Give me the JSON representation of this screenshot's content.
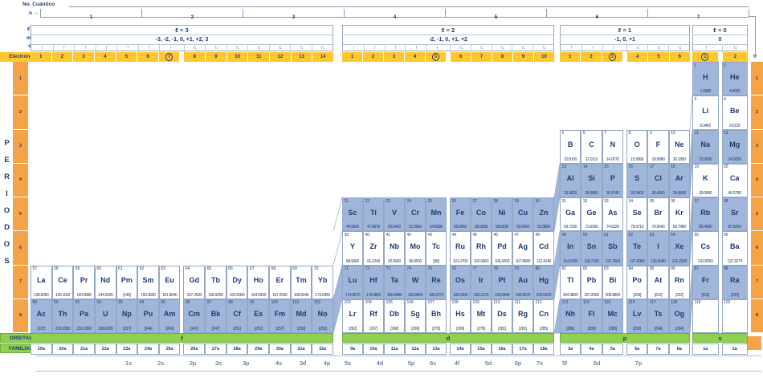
{
  "labels": {
    "no_cuantico": "No. Cuántico",
    "n": "n",
    "l": "ℓ",
    "m": "m",
    "s": "s",
    "arrow": "→",
    "electrones": "Electrones",
    "periodos": "PERIODOS",
    "orbital": "ORBITAL",
    "familias": "FAMILIAS"
  },
  "colors": {
    "navy_text": "#1f3a70",
    "cell_blue": "#a0b5da",
    "electron_yellow": "#ffc62e",
    "period_orange": "#f4a446",
    "orbital_green": "#8fd14f"
  },
  "n_axis": [
    "1",
    "2",
    "3",
    "4",
    "5",
    "6",
    "7"
  ],
  "periods_left": [
    "1",
    "2",
    "3",
    "4",
    "5",
    "6",
    "7",
    "8"
  ],
  "periods_right": [
    "1",
    "2",
    "3",
    "4",
    "5",
    "6",
    "7",
    "8"
  ],
  "bottom_axis": [
    "1s",
    "2s",
    "2p",
    "3s",
    "3p",
    "4s",
    "3d",
    "4p",
    "5s",
    "4d",
    "5p",
    "6s",
    "4f",
    "5d",
    "6p",
    "7s",
    "5f",
    "6d",
    "7p"
  ],
  "blocks": [
    {
      "id": "f",
      "l_label": "ℓ = 3",
      "m_label": "-3, -2, -1, 0, +1, +2, 3",
      "spins": [
        "↑",
        "↑",
        "↑",
        "↑",
        "↑",
        "↑",
        "↑",
        "↑↓",
        "↑↓",
        "↑↓",
        "↑↓",
        "↑↓",
        "↑↓",
        "↑↓"
      ],
      "electrones": [
        "1",
        "2",
        "3",
        "4",
        "5",
        "6",
        "7",
        "8",
        "9",
        "10",
        "11",
        "12",
        "13",
        "14"
      ],
      "circled": "7",
      "orbital": "f",
      "familias": [
        "19a",
        "20a",
        "21a",
        "22a",
        "23a",
        "24a",
        "25a",
        "26a",
        "27a",
        "28a",
        "29a",
        "30a",
        "31a",
        "32a"
      ],
      "rows": [
        {
          "period": 7,
          "tone": "white",
          "cells": [
            {
              "z": "57",
              "sym": "La",
              "mass": "138.9050"
            },
            {
              "z": "58",
              "sym": "Ce",
              "mass": "140.1160"
            },
            {
              "z": "59",
              "sym": "Pr",
              "mass": "140.9080"
            },
            {
              "z": "60",
              "sym": "Nd",
              "mass": "144.2420"
            },
            {
              "z": "61",
              "sym": "Pm",
              "mass": "[145]"
            },
            {
              "z": "62",
              "sym": "Sm",
              "mass": "150.3600"
            },
            {
              "z": "63",
              "sym": "Eu",
              "mass": "151.9640"
            },
            {
              "z": "64",
              "sym": "Gd",
              "mass": "157.2500"
            },
            {
              "z": "65",
              "sym": "Tb",
              "mass": "158.9250"
            },
            {
              "z": "66",
              "sym": "Dy",
              "mass": "162.5000"
            },
            {
              "z": "67",
              "sym": "Ho",
              "mass": "164.9300"
            },
            {
              "z": "68",
              "sym": "Er",
              "mass": "167.2590"
            },
            {
              "z": "69",
              "sym": "Tm",
              "mass": "168.9340"
            },
            {
              "z": "70",
              "sym": "Yb",
              "mass": "173.0450"
            }
          ]
        },
        {
          "period": 8,
          "tone": "blue",
          "cells": [
            {
              "z": "89",
              "sym": "Ac",
              "mass": "[227]"
            },
            {
              "z": "90",
              "sym": "Th",
              "mass": "232.0380"
            },
            {
              "z": "91",
              "sym": "Pa",
              "mass": "231.0360"
            },
            {
              "z": "92",
              "sym": "U",
              "mass": "238.0290"
            },
            {
              "z": "93",
              "sym": "Np",
              "mass": "[237]"
            },
            {
              "z": "94",
              "sym": "Pu",
              "mass": "[244]"
            },
            {
              "z": "95",
              "sym": "Am",
              "mass": "[243]"
            },
            {
              "z": "96",
              "sym": "Cm",
              "mass": "[247]"
            },
            {
              "z": "97",
              "sym": "Bk",
              "mass": "[247]"
            },
            {
              "z": "98",
              "sym": "Cf",
              "mass": "[251]"
            },
            {
              "z": "99",
              "sym": "Es",
              "mass": "[252]"
            },
            {
              "z": "100",
              "sym": "Fm",
              "mass": "[257]"
            },
            {
              "z": "101",
              "sym": "Md",
              "mass": "[258]"
            },
            {
              "z": "102",
              "sym": "No",
              "mass": "[259]"
            }
          ]
        }
      ]
    },
    {
      "id": "d",
      "l_label": "ℓ = 2",
      "m_label": "-2, -1, 0, +1, +2",
      "spins": [
        "↑",
        "↑",
        "↑",
        "↑",
        "↑",
        "↑↓",
        "↑↓",
        "↑↓",
        "↑↓",
        "↑↓"
      ],
      "electrones": [
        "1",
        "2",
        "3",
        "4",
        "5",
        "6",
        "7",
        "8",
        "9",
        "10"
      ],
      "circled": "5",
      "orbital": "d",
      "familias": [
        "9a",
        "10a",
        "11a",
        "12a",
        "13a",
        "14a",
        "15a",
        "16a",
        "17a",
        "18a"
      ],
      "rows": [
        {
          "period": 5,
          "tone": "blue",
          "cells": [
            {
              "z": "21",
              "sym": "Sc",
              "mass": "44.9560"
            },
            {
              "z": "22",
              "sym": "Ti",
              "mass": "47.8670"
            },
            {
              "z": "23",
              "sym": "V",
              "mass": "50.9420"
            },
            {
              "z": "24",
              "sym": "Cr",
              "mass": "51.9960"
            },
            {
              "z": "25",
              "sym": "Mn",
              "mass": "54.9380"
            },
            {
              "z": "26",
              "sym": "Fe",
              "mass": "55.8450"
            },
            {
              "z": "27",
              "sym": "Co",
              "mass": "58.9330"
            },
            {
              "z": "28",
              "sym": "Ni",
              "mass": "58.6930"
            },
            {
              "z": "29",
              "sym": "Cu",
              "mass": "63.5460"
            },
            {
              "z": "30",
              "sym": "Zn",
              "mass": "65.3800"
            }
          ]
        },
        {
          "period": 6,
          "tone": "white",
          "cells": [
            {
              "z": "39",
              "sym": "Y",
              "mass": "88.9060"
            },
            {
              "z": "40",
              "sym": "Zr",
              "mass": "91.2240"
            },
            {
              "z": "41",
              "sym": "Nb",
              "mass": "92.9060"
            },
            {
              "z": "42",
              "sym": "Mo",
              "mass": "95.9500"
            },
            {
              "z": "43",
              "sym": "Tc",
              "mass": "[98]"
            },
            {
              "z": "44",
              "sym": "Ru",
              "mass": "101.0700"
            },
            {
              "z": "45",
              "sym": "Rh",
              "mass": "102.9060"
            },
            {
              "z": "46",
              "sym": "Pd",
              "mass": "106.4200"
            },
            {
              "z": "47",
              "sym": "Ag",
              "mass": "107.8680"
            },
            {
              "z": "48",
              "sym": "Cd",
              "mass": "112.4140"
            }
          ]
        },
        {
          "period": 7,
          "tone": "blue",
          "cells": [
            {
              "z": "71",
              "sym": "Lu",
              "mass": "174.9670"
            },
            {
              "z": "72",
              "sym": "Hf",
              "mass": "178.4860"
            },
            {
              "z": "73",
              "sym": "Ta",
              "mass": "180.9480"
            },
            {
              "z": "74",
              "sym": "W",
              "mass": "183.8400"
            },
            {
              "z": "75",
              "sym": "Re",
              "mass": "186.2070"
            },
            {
              "z": "76",
              "sym": "Os",
              "mass": "190.2300"
            },
            {
              "z": "77",
              "sym": "Ir",
              "mass": "192.2170"
            },
            {
              "z": "78",
              "sym": "Pt",
              "mass": "195.0840"
            },
            {
              "z": "79",
              "sym": "Au",
              "mass": "196.9670"
            },
            {
              "z": "80",
              "sym": "Hg",
              "mass": "200.5920"
            }
          ]
        },
        {
          "period": 8,
          "tone": "white",
          "cells": [
            {
              "z": "103",
              "sym": "Lr",
              "mass": "[262]"
            },
            {
              "z": "104",
              "sym": "Rf",
              "mass": "[267]"
            },
            {
              "z": "105",
              "sym": "Db",
              "mass": "[268]"
            },
            {
              "z": "106",
              "sym": "Sg",
              "mass": "[269]"
            },
            {
              "z": "107",
              "sym": "Bh",
              "mass": "[270]"
            },
            {
              "z": "108",
              "sym": "Hs",
              "mass": "[269]"
            },
            {
              "z": "109",
              "sym": "Mt",
              "mass": "[278]"
            },
            {
              "z": "110",
              "sym": "Ds",
              "mass": "[281]"
            },
            {
              "z": "111",
              "sym": "Rg",
              "mass": "[281]"
            },
            {
              "z": "112",
              "sym": "Cn",
              "mass": "[285]"
            }
          ]
        }
      ]
    },
    {
      "id": "p",
      "l_label": "ℓ = 1",
      "m_label": "-1, 0, +1",
      "spins": [
        "↑",
        "↑",
        "↑",
        "↑↓",
        "↑↓",
        "↑↓"
      ],
      "electrones": [
        "1",
        "2",
        "3",
        "4",
        "5",
        "6"
      ],
      "circled": "3",
      "orbital": "p",
      "familias": [
        "3a",
        "4a",
        "5a",
        "6a",
        "7a",
        "8a"
      ],
      "rows": [
        {
          "period": 3,
          "tone": "white",
          "cells": [
            {
              "z": "5",
              "sym": "B",
              "mass": "10.8100"
            },
            {
              "z": "6",
              "sym": "C",
              "mass": "12.0110"
            },
            {
              "z": "7",
              "sym": "N",
              "mass": "14.0070"
            },
            {
              "z": "8",
              "sym": "O",
              "mass": "15.9990"
            },
            {
              "z": "9",
              "sym": "F",
              "mass": "18.9980"
            },
            {
              "z": "10",
              "sym": "Ne",
              "mass": "20.1800"
            }
          ]
        },
        {
          "period": 4,
          "tone": "blue",
          "cells": [
            {
              "z": "13",
              "sym": "Al",
              "mass": "26.9820"
            },
            {
              "z": "14",
              "sym": "Si",
              "mass": "28.0850"
            },
            {
              "z": "15",
              "sym": "P",
              "mass": "30.9740"
            },
            {
              "z": "16",
              "sym": "S",
              "mass": "32.0600"
            },
            {
              "z": "17",
              "sym": "Cl",
              "mass": "35.4500"
            },
            {
              "z": "18",
              "sym": "Ar",
              "mass": "39.9500"
            }
          ]
        },
        {
          "period": 5,
          "tone": "white",
          "cells": [
            {
              "z": "31",
              "sym": "Ga",
              "mass": "69.7230"
            },
            {
              "z": "32",
              "sym": "Ge",
              "mass": "72.6300"
            },
            {
              "z": "33",
              "sym": "As",
              "mass": "74.9220"
            },
            {
              "z": "34",
              "sym": "Se",
              "mass": "78.9710"
            },
            {
              "z": "35",
              "sym": "Br",
              "mass": "79.9040"
            },
            {
              "z": "36",
              "sym": "Kr",
              "mass": "83.7980"
            }
          ]
        },
        {
          "period": 6,
          "tone": "blue",
          "cells": [
            {
              "z": "49",
              "sym": "In",
              "mass": "114.8180"
            },
            {
              "z": "50",
              "sym": "Sn",
              "mass": "118.7100"
            },
            {
              "z": "51",
              "sym": "Sb",
              "mass": "121.7600"
            },
            {
              "z": "52",
              "sym": "Te",
              "mass": "127.6000"
            },
            {
              "z": "53",
              "sym": "I",
              "mass": "126.9040"
            },
            {
              "z": "54",
              "sym": "Xe",
              "mass": "131.2930"
            }
          ]
        },
        {
          "period": 7,
          "tone": "white",
          "cells": [
            {
              "z": "81",
              "sym": "Tl",
              "mass": "204.3800"
            },
            {
              "z": "82",
              "sym": "Pb",
              "mass": "207.2000"
            },
            {
              "z": "83",
              "sym": "Bi",
              "mass": "208.9800"
            },
            {
              "z": "84",
              "sym": "Po",
              "mass": "[209]"
            },
            {
              "z": "85",
              "sym": "At",
              "mass": "[210]"
            },
            {
              "z": "86",
              "sym": "Rn",
              "mass": "[222]"
            }
          ]
        },
        {
          "period": 8,
          "tone": "blue",
          "cells": [
            {
              "z": "113",
              "sym": "Nh",
              "mass": "[286]"
            },
            {
              "z": "114",
              "sym": "Fl",
              "mass": "[289]"
            },
            {
              "z": "115",
              "sym": "Mc",
              "mass": "[289]"
            },
            {
              "z": "116",
              "sym": "Lv",
              "mass": "[293]"
            },
            {
              "z": "117",
              "sym": "Ts",
              "mass": "[294]"
            },
            {
              "z": "118",
              "sym": "Og",
              "mass": "[294]"
            }
          ]
        }
      ]
    },
    {
      "id": "s",
      "l_label": "ℓ = 0",
      "m_label": "0",
      "spins": [
        "↑",
        "↑↓"
      ],
      "electrones": [
        "1",
        "2"
      ],
      "circled": "1",
      "orbital": "s",
      "familias": [
        "1a",
        "2a"
      ],
      "rows": [
        {
          "period": 1,
          "tone": "blue",
          "cells": [
            {
              "z": "1",
              "sym": "H",
              "mass": "1.0080"
            },
            {
              "z": "2",
              "sym": "He",
              "mass": "4.0030"
            }
          ]
        },
        {
          "period": 2,
          "tone": "white",
          "cells": [
            {
              "z": "3",
              "sym": "Li",
              "mass": "6.9400"
            },
            {
              "z": "4",
              "sym": "Be",
              "mass": "9.0120"
            }
          ]
        },
        {
          "period": 3,
          "tone": "blue",
          "cells": [
            {
              "z": "11",
              "sym": "Na",
              "mass": "22.9900"
            },
            {
              "z": "12",
              "sym": "Mg",
              "mass": "24.3050"
            }
          ]
        },
        {
          "period": 4,
          "tone": "white",
          "cells": [
            {
              "z": "19",
              "sym": "K",
              "mass": "39.0980"
            },
            {
              "z": "20",
              "sym": "Ca",
              "mass": "40.0780"
            }
          ]
        },
        {
          "period": 5,
          "tone": "blue",
          "cells": [
            {
              "z": "37",
              "sym": "Rb",
              "mass": "85.4680"
            },
            {
              "z": "38",
              "sym": "Sr",
              "mass": "87.6200"
            }
          ]
        },
        {
          "period": 6,
          "tone": "white",
          "cells": [
            {
              "z": "55",
              "sym": "Cs",
              "mass": "132.9050"
            },
            {
              "z": "56",
              "sym": "Ba",
              "mass": "137.3270"
            }
          ]
        },
        {
          "period": 7,
          "tone": "blue",
          "cells": [
            {
              "z": "87",
              "sym": "Fr",
              "mass": "[223]"
            },
            {
              "z": "88",
              "sym": "Ra",
              "mass": "[226]"
            }
          ]
        },
        {
          "period": 8,
          "tone": "white",
          "cells": [
            {
              "z": "119",
              "sym": "",
              "mass": ""
            },
            {
              "z": "120",
              "sym": "",
              "mass": ""
            }
          ]
        }
      ]
    }
  ]
}
